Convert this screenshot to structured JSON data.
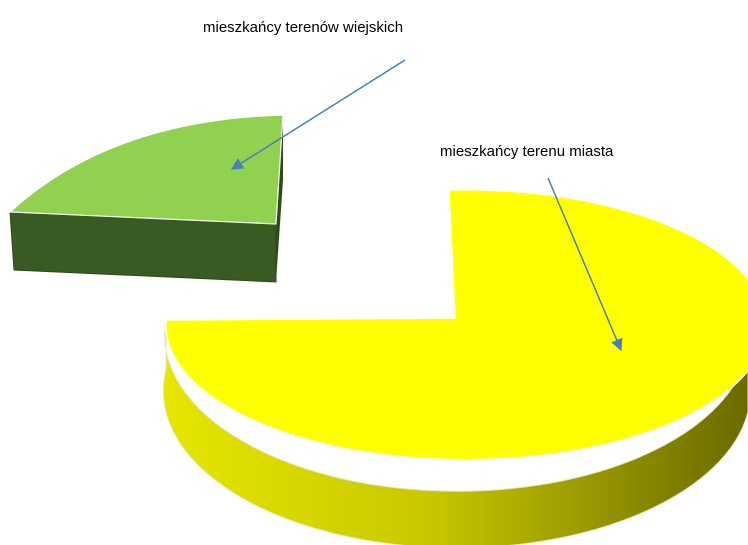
{
  "chart_data": {
    "type": "pie",
    "style": "3d-exploded",
    "categories": [
      "mieszkańcy terenów wiejskich",
      "mieszkańcy terenu miasta"
    ],
    "values": [
      25,
      75
    ],
    "colors": {
      "rural_top": "#92d050",
      "rural_side": "#3a5a23",
      "urban_top": "#ffff00",
      "urban_side_light": "#d8d800",
      "urban_side_dark": "#6f6f00",
      "leader_line": "#4a7ebb"
    },
    "legend": "none"
  }
}
